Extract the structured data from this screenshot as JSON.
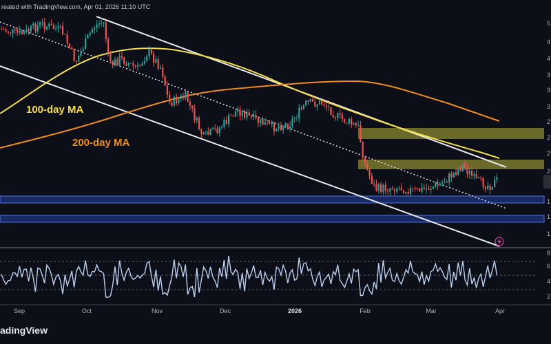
{
  "header": {
    "text": "reated with TradingView.com, Apr 01, 2026 11:10 UTC"
  },
  "brand": {
    "logo_text": "adingView"
  },
  "chart_data": {
    "type": "candlestick",
    "x_ticks": [
      {
        "label": "Sep",
        "bold": false
      },
      {
        "label": "Oct",
        "bold": false
      },
      {
        "label": "Nov",
        "bold": false
      },
      {
        "label": "Dec",
        "bold": false
      },
      {
        "label": "2026",
        "bold": true
      },
      {
        "label": "Feb",
        "bold": false
      },
      {
        "label": "Mar",
        "bold": false
      },
      {
        "label": "Apr",
        "bold": false
      }
    ],
    "price_axis_partial_labels": [
      "5",
      "4",
      "4",
      "3",
      "3",
      "3",
      "2",
      "2",
      "2",
      "2",
      "1",
      "1",
      "1"
    ],
    "rsi_axis_labels": [
      "8",
      "6",
      "4",
      "2"
    ],
    "annotations": [
      {
        "text": "100-day MA",
        "color": "#f5e04a"
      },
      {
        "text": "200-day MA",
        "color": "#f08c1e"
      }
    ],
    "series": [
      {
        "kind": "candles",
        "up_color": "#26a69a",
        "down_color": "#ef5350",
        "start_value": 0.86,
        "end_value": 0.23,
        "low_value": 0.2
      },
      {
        "kind": "moving-average",
        "color": "#f5e04a"
      },
      {
        "kind": "moving-average",
        "color": "#f08c1e"
      }
    ],
    "zones": [
      {
        "kind": "resistance",
        "color": "#d8d440",
        "count": 2
      },
      {
        "kind": "support",
        "color": "#3d63d6",
        "count": 2
      }
    ],
    "indicator": {
      "name": "RSI",
      "color": "#bcd0f0",
      "levels": [
        70,
        50,
        30
      ]
    }
  }
}
